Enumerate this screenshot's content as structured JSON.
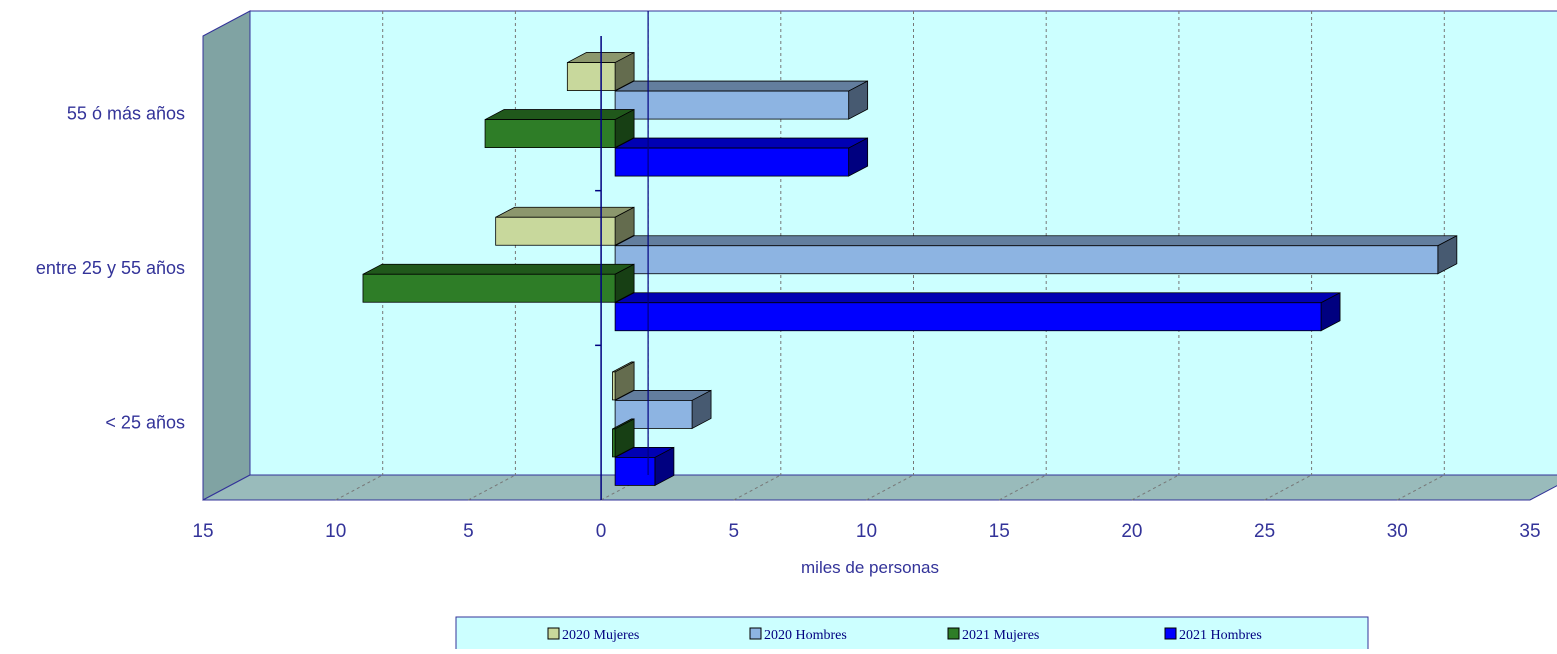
{
  "chart_data": {
    "type": "bar",
    "orientation": "horizontal",
    "style": "3d-clustered-population-pyramid",
    "xlabel": "miles de personas",
    "ylabel": "",
    "xlim": [
      -15,
      35
    ],
    "x_tick_values": [
      -15,
      -10,
      -5,
      0,
      5,
      10,
      15,
      20,
      25,
      30,
      35
    ],
    "x_tick_labels": [
      "15",
      "10",
      "5",
      "0",
      "5",
      "10",
      "15",
      "20",
      "25",
      "30",
      "35"
    ],
    "categories": [
      "55 ó más años",
      "entre 25 y 55 años",
      "< 25 años"
    ],
    "series": [
      {
        "name": "2020 Mujeres",
        "color": "#c8d89c",
        "values": [
          -1.8,
          -4.5,
          -0.1
        ]
      },
      {
        "name": "2020 Hombres",
        "color": "#8db4e2",
        "values": [
          8.8,
          31.0,
          2.9
        ]
      },
      {
        "name": "2021 Mujeres",
        "color": "#2e7d27",
        "values": [
          -4.9,
          -9.5,
          -0.1
        ]
      },
      {
        "name": "2021 Hombres",
        "color": "#0000ff",
        "values": [
          8.8,
          26.6,
          1.5
        ]
      }
    ],
    "grid": true,
    "legend_position": "bottom",
    "colors": {
      "plot_background": "#ccffff",
      "wall_side": "#80a3a3",
      "floor": "#99bbbb",
      "axis_text": "#333399",
      "zero_line": "#000080"
    }
  }
}
